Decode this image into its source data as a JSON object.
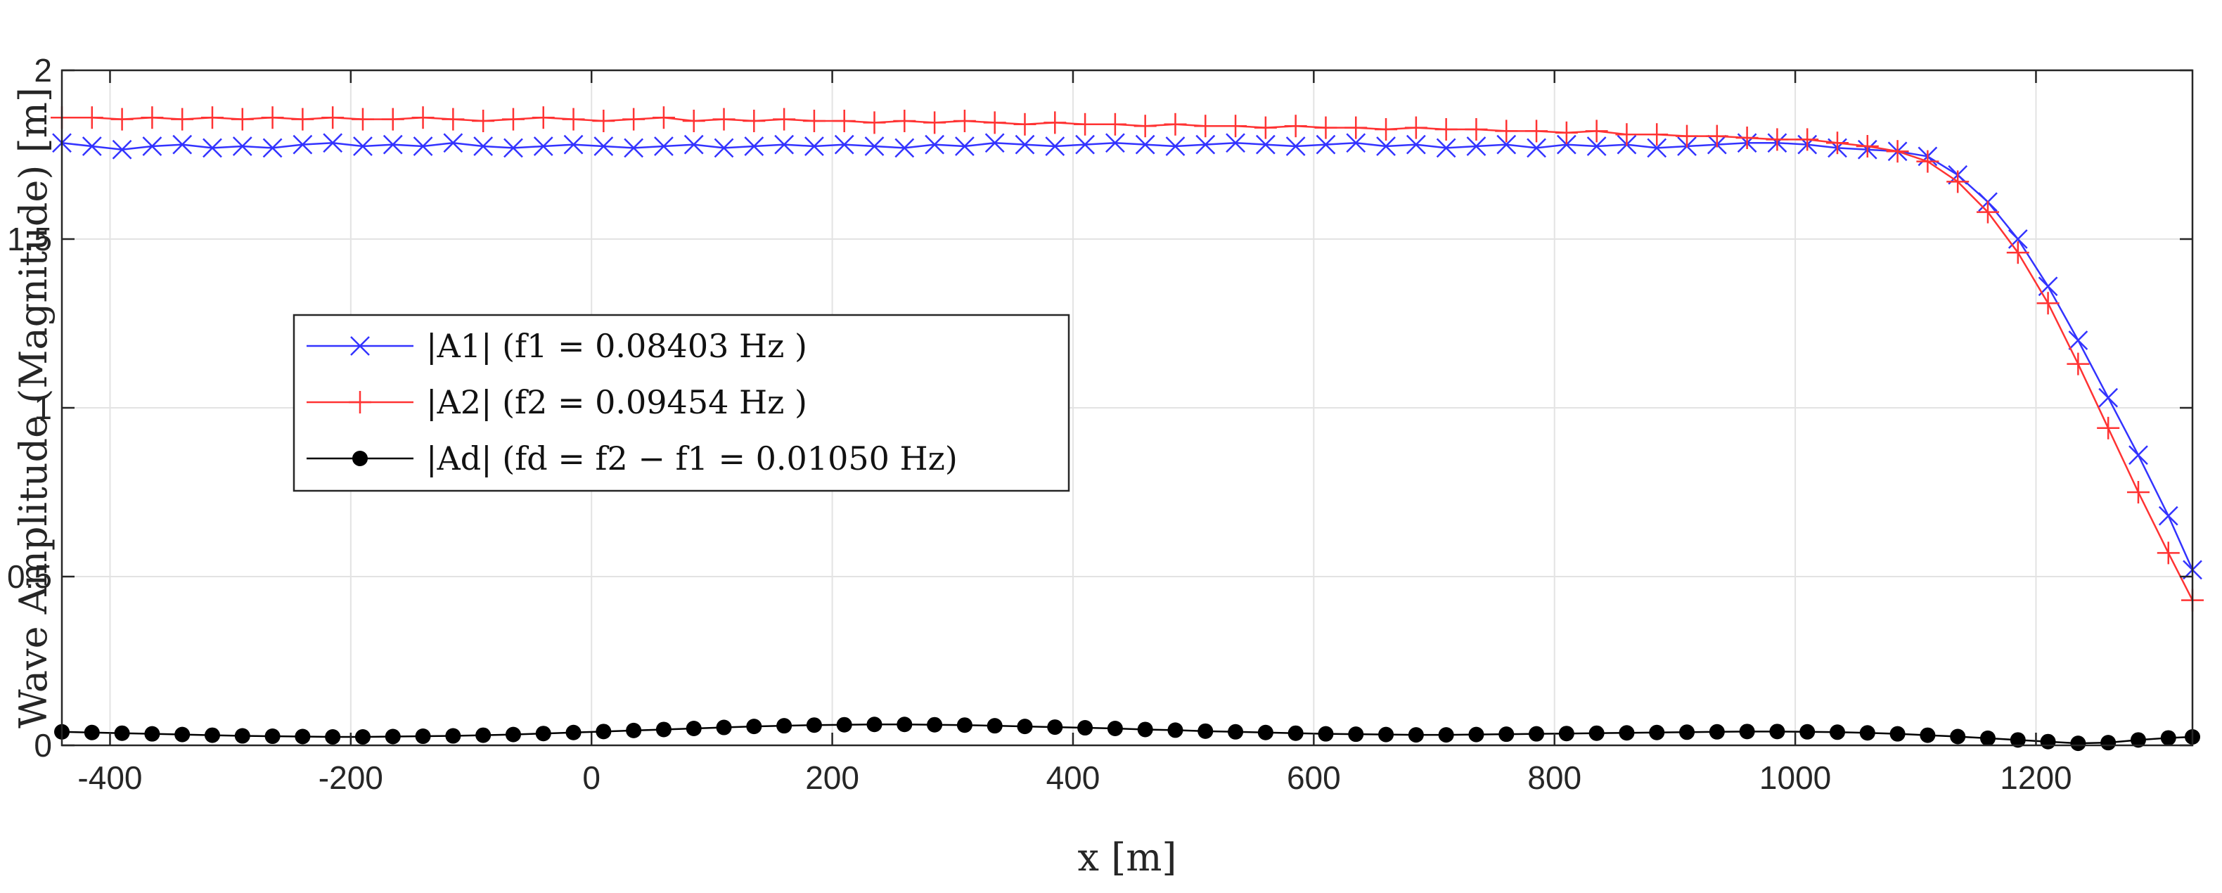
{
  "chart_data": {
    "type": "line",
    "title": "",
    "xlabel": "x [m]",
    "ylabel": "Wave Amplitude (Magnitude) [m]",
    "xlim": [
      -440,
      1330
    ],
    "ylim": [
      0,
      2
    ],
    "grid": true,
    "legend_position": "left",
    "x_ticks": [
      -400,
      -200,
      0,
      200,
      400,
      600,
      800,
      1000,
      1200
    ],
    "y_ticks": [
      0,
      0.5,
      1,
      1.5,
      2
    ],
    "x_tick_labels": [
      "-400",
      "-200",
      "0",
      "200",
      "400",
      "600",
      "800",
      "1000",
      "1200"
    ],
    "y_tick_labels": [
      "0",
      "0.5",
      "1",
      "1.5",
      "2"
    ],
    "x": [
      -440,
      -415,
      -390,
      -365,
      -340,
      -315,
      -290,
      -265,
      -240,
      -215,
      -190,
      -165,
      -140,
      -115,
      -90,
      -65,
      -40,
      -15,
      10,
      35,
      60,
      85,
      110,
      135,
      160,
      185,
      210,
      235,
      260,
      285,
      310,
      335,
      360,
      385,
      410,
      435,
      460,
      485,
      510,
      535,
      560,
      585,
      610,
      635,
      660,
      685,
      710,
      735,
      760,
      785,
      810,
      835,
      860,
      885,
      910,
      935,
      960,
      985,
      1010,
      1035,
      1060,
      1085,
      1110,
      1135,
      1160,
      1185,
      1210,
      1235,
      1260,
      1285,
      1310,
      1330
    ],
    "series": [
      {
        "name": "|A1| (f1 = 0.08403 Hz )",
        "color": "#3333ff",
        "marker": "x",
        "values": [
          1.785,
          1.775,
          1.765,
          1.775,
          1.78,
          1.77,
          1.775,
          1.77,
          1.78,
          1.785,
          1.775,
          1.78,
          1.775,
          1.785,
          1.775,
          1.77,
          1.775,
          1.78,
          1.775,
          1.77,
          1.775,
          1.78,
          1.77,
          1.775,
          1.78,
          1.775,
          1.78,
          1.775,
          1.77,
          1.78,
          1.775,
          1.785,
          1.78,
          1.775,
          1.78,
          1.785,
          1.78,
          1.775,
          1.78,
          1.785,
          1.78,
          1.775,
          1.78,
          1.785,
          1.775,
          1.78,
          1.77,
          1.775,
          1.78,
          1.77,
          1.78,
          1.775,
          1.78,
          1.77,
          1.775,
          1.78,
          1.785,
          1.785,
          1.78,
          1.77,
          1.765,
          1.76,
          1.745,
          1.69,
          1.61,
          1.5,
          1.36,
          1.2,
          1.03,
          0.86,
          0.68,
          0.52
        ]
      },
      {
        "name": "|A2| (f2 = 0.09454 Hz )",
        "color": "#ff3333",
        "marker": "+",
        "values": [
          1.86,
          1.86,
          1.855,
          1.86,
          1.855,
          1.86,
          1.855,
          1.86,
          1.855,
          1.86,
          1.855,
          1.855,
          1.86,
          1.855,
          1.85,
          1.855,
          1.86,
          1.855,
          1.85,
          1.855,
          1.86,
          1.85,
          1.855,
          1.85,
          1.855,
          1.85,
          1.85,
          1.845,
          1.85,
          1.845,
          1.85,
          1.845,
          1.84,
          1.845,
          1.84,
          1.84,
          1.835,
          1.84,
          1.835,
          1.835,
          1.83,
          1.835,
          1.83,
          1.83,
          1.825,
          1.83,
          1.825,
          1.825,
          1.82,
          1.82,
          1.815,
          1.82,
          1.81,
          1.81,
          1.805,
          1.805,
          1.8,
          1.795,
          1.795,
          1.785,
          1.775,
          1.76,
          1.73,
          1.67,
          1.58,
          1.46,
          1.31,
          1.13,
          0.94,
          0.75,
          0.57,
          0.43
        ]
      },
      {
        "name": "|Ad| (fd = f2 − f1 = 0.01050 Hz)",
        "color": "#000000",
        "marker": "o",
        "values": [
          0.04,
          0.038,
          0.036,
          0.034,
          0.032,
          0.03,
          0.028,
          0.027,
          0.026,
          0.025,
          0.025,
          0.026,
          0.027,
          0.028,
          0.03,
          0.032,
          0.035,
          0.038,
          0.041,
          0.044,
          0.047,
          0.05,
          0.053,
          0.056,
          0.058,
          0.06,
          0.061,
          0.062,
          0.062,
          0.061,
          0.06,
          0.058,
          0.056,
          0.054,
          0.052,
          0.05,
          0.047,
          0.045,
          0.042,
          0.04,
          0.038,
          0.036,
          0.034,
          0.033,
          0.032,
          0.031,
          0.031,
          0.032,
          0.033,
          0.034,
          0.035,
          0.036,
          0.037,
          0.038,
          0.039,
          0.04,
          0.041,
          0.041,
          0.04,
          0.039,
          0.037,
          0.034,
          0.03,
          0.026,
          0.021,
          0.016,
          0.011,
          0.006,
          0.008,
          0.016,
          0.022,
          0.025
        ]
      }
    ]
  }
}
